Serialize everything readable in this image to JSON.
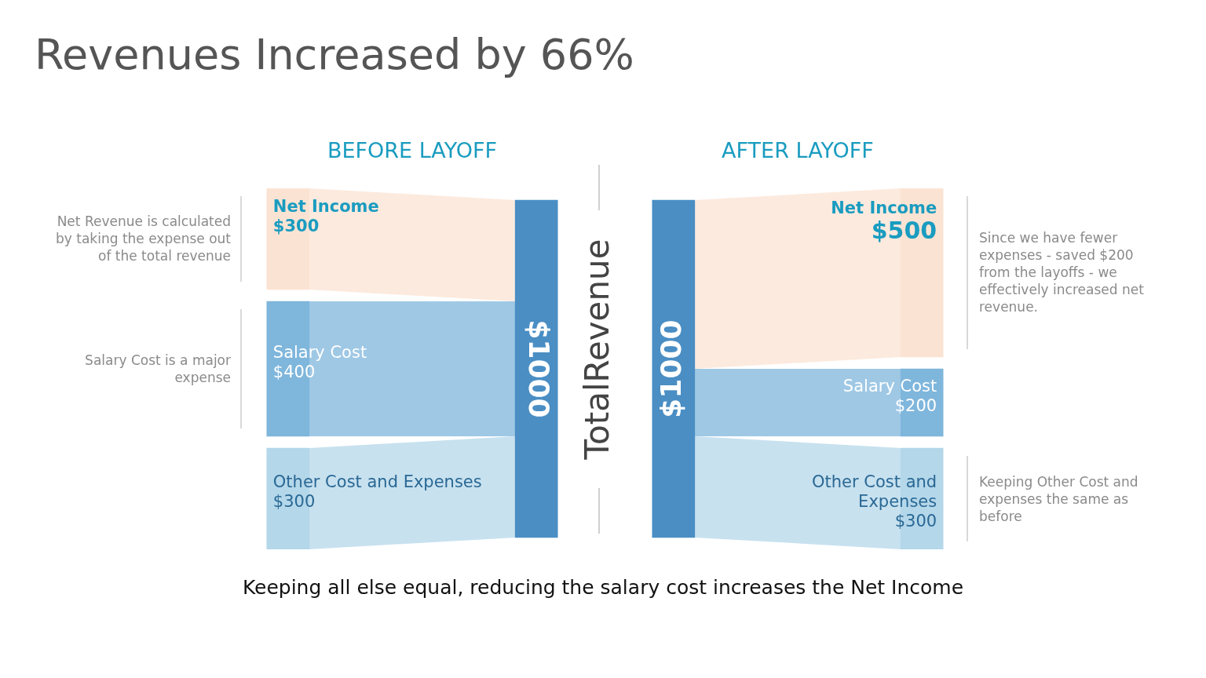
{
  "chart_data": [
    {
      "type": "other",
      "title": "Revenues Increased by 66%",
      "annotations": [
        "TotalRevenue",
        "Keeping all else equal, reducing the salary cost increases the Net Income"
      ]
    },
    {
      "type": "other",
      "title": "BEFORE LAYOFF",
      "categories": [
        "Net Income",
        "Salary Cost",
        "Other Cost and Expenses"
      ],
      "values": [
        300,
        400,
        300
      ],
      "value_labels": [
        "$300",
        "$400",
        "$300"
      ],
      "colors": [
        "#fbe3d3",
        "#7fb6dc",
        "#b4d7ea"
      ],
      "color": "#4a8ec4",
      "totals": [
        "$1000"
      ],
      "annotations": [
        {
          "text": "Net Revenue is calculated by taking the expense out of the total revenue",
          "x": "Net Income"
        },
        {
          "text": "Salary Cost is a major expense",
          "x": "Salary Cost"
        }
      ]
    },
    {
      "type": "other",
      "title": "AFTER LAYOFF",
      "categories": [
        "Net Income",
        "Salary Cost",
        "Other Cost and Expenses"
      ],
      "values": [
        500,
        200,
        300
      ],
      "value_labels": [
        "$500",
        "$200",
        "$300"
      ],
      "colors": [
        "#fbe3d3",
        "#7fb6dc",
        "#b4d7ea"
      ],
      "color": "#4a8ec4",
      "totals": [
        "$1000"
      ],
      "annotations": [
        {
          "text": "Since we have fewer expenses - saved  $200 from the layoffs - we effectively increased net revenue.",
          "x": "Net Income"
        },
        {
          "text": "Keeping Other Cost and expenses the same as before",
          "x": "Other Cost and Expenses"
        }
      ]
    }
  ]
}
